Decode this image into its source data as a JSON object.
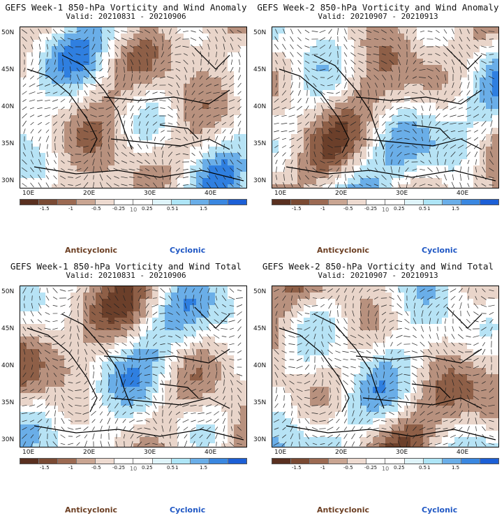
{
  "legend_labels": [
    "-1.5",
    "-1",
    "-0.5",
    "-0.25",
    "0.25",
    "0.5",
    "1",
    "1.5"
  ],
  "unit_label": "10",
  "colorbar_colors": [
    "#5a3020",
    "#7a4a33",
    "#9c6a52",
    "#c9a592",
    "#eddad0",
    "#ffffff",
    "#ffffff",
    "#dff4fa",
    "#aee5f6",
    "#6aaee8",
    "#3a87e0",
    "#1c5fd6"
  ],
  "anticyclonic_color": "#6b3e22",
  "cyclonic_color": "#1f57c4",
  "y_ticks": [
    "50N",
    "45N",
    "40N",
    "35N",
    "30N"
  ],
  "x_ticks": [
    "10E",
    "20E",
    "30E",
    "40E"
  ],
  "panels": [
    {
      "title": "GEFS Week-1  850-hPa Vorticity and Wind Anomaly",
      "valid": "Valid:  20210831  -  20210906",
      "anticyclonic": "Anticyclonic",
      "cyclonic": "Cyclonic",
      "seed": 1
    },
    {
      "title": "GEFS Week-2  850-hPa Vorticity and Wind Anomaly",
      "valid": "Valid:  20210907  -  20210913",
      "anticyclonic": "Anticyclonic",
      "cyclonic": "Cyclonic",
      "seed": 2
    },
    {
      "title": "GEFS Week-1  850-hPa Vorticity and Wind Total",
      "valid": "Valid:  20210831  -  20210906",
      "anticyclonic": "Anticyclonic",
      "cyclonic": "Cyclonic",
      "seed": 3
    },
    {
      "title": "GEFS Week-2  850-hPa Vorticity and Wind Total",
      "valid": "Valid:  20210907  -  20210913",
      "anticyclonic": "Anticyclonic",
      "cyclonic": "Cyclonic",
      "seed": 4
    }
  ]
}
